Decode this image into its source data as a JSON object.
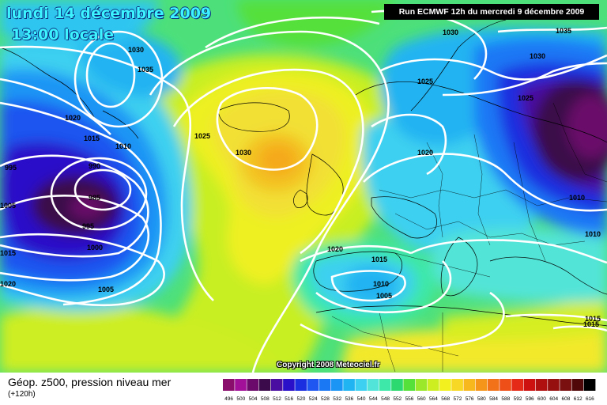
{
  "header": {
    "date_line": "lundi 14 décembre 2009",
    "time_line": "13:00 locale",
    "run_info": "Run ECMWF 12h du mercredi 9 décembre 2009"
  },
  "copyright": "Copyright 2008 Meteociel.fr",
  "legend": {
    "title": "Géop. z500, pression niveau mer",
    "subtitle": "(+120h)",
    "levels": [
      "496",
      "500",
      "504",
      "508",
      "512",
      "516",
      "520",
      "524",
      "528",
      "532",
      "536",
      "540",
      "544",
      "548",
      "552",
      "556",
      "560",
      "564",
      "568",
      "572",
      "576",
      "580",
      "584",
      "588",
      "592",
      "596",
      "600",
      "604",
      "608",
      "612",
      "616"
    ],
    "colors": [
      "#8a0f6c",
      "#a2109a",
      "#6b0a6b",
      "#3a0a4a",
      "#4a0fa0",
      "#2a10c8",
      "#1b2fe0",
      "#1f55f0",
      "#1a78f5",
      "#1a95f5",
      "#21b4f2",
      "#3dd0f0",
      "#52e4d8",
      "#3de8a8",
      "#2cd870",
      "#55e03a",
      "#9be82b",
      "#cdee21",
      "#f2f01f",
      "#f7d824",
      "#f7b81e",
      "#f5961b",
      "#f27219",
      "#ee4e18",
      "#e52a18",
      "#cd1010",
      "#b01010",
      "#961010",
      "#7a1010",
      "#500808",
      "#000000"
    ]
  },
  "isobars": {
    "labels": [
      "1030",
      "1035",
      "1020",
      "1015",
      "1010",
      "995",
      "990",
      "985",
      "995",
      "1000",
      "1005",
      "1025",
      "1030",
      "1020",
      "1025",
      "1030",
      "1035",
      "1030",
      "1025",
      "1010",
      "1010",
      "1015",
      "1020",
      "1015",
      "1010",
      "1005",
      "1015",
      "1015",
      "1005",
      "1020"
    ]
  }
}
